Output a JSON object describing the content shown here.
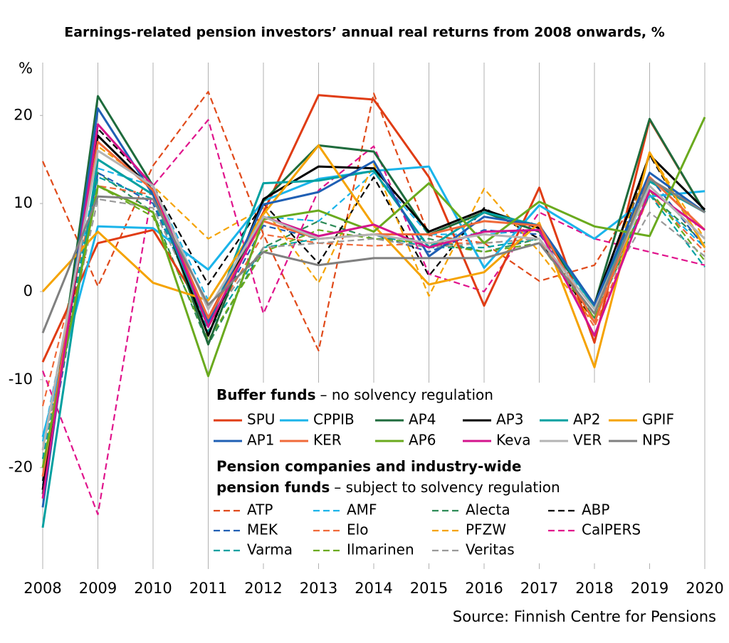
{
  "chart_data": {
    "type": "line",
    "title": "Earnings-related pension investors’ annual real returns from 2008 onwards, %",
    "y_label": "%",
    "source": "Source: Finnish Centre for Pensions",
    "categories": [
      "2008",
      "2009",
      "2010",
      "2011",
      "2012",
      "2013",
      "2014",
      "2015",
      "2016",
      "2017",
      "2018",
      "2019",
      "2020"
    ],
    "ylim": [
      -31.5,
      26
    ],
    "yticks": [
      -20,
      -10,
      0,
      10,
      20
    ],
    "grid": "x",
    "legend_groups": [
      {
        "title": [
          "Buffer funds"
        ],
        "subtitle": "– no solvency regulation"
      },
      {
        "title": [
          "Pension companies and industry-wide",
          "pension funds"
        ],
        "subtitle": "– subject to solvency regulation"
      }
    ],
    "series": [
      {
        "name": "SPU",
        "color": "#e03c14",
        "dashed": false,
        "values": [
          -8,
          5.5,
          7,
          -3,
          9,
          22.3,
          21.8,
          13,
          -1.6,
          11.8,
          -5.8,
          19.5,
          9
        ]
      },
      {
        "name": "CPPIB",
        "color": "#1ab4ea",
        "dashed": false,
        "values": [
          -16.5,
          7.4,
          7.2,
          2.5,
          10.3,
          12.8,
          13.7,
          14.2,
          2.7,
          9.8,
          6,
          10.8,
          11.4
        ]
      },
      {
        "name": "AP4",
        "color": "#1e6b3c",
        "dashed": false,
        "values": [
          -23,
          22.2,
          12,
          -6,
          10.3,
          16.6,
          15.9,
          6.5,
          9,
          6.8,
          -1.5,
          19.6,
          9
        ]
      },
      {
        "name": "AP3",
        "color": "#000000",
        "dashed": false,
        "values": [
          -22.5,
          17.7,
          11.5,
          -5,
          10.5,
          14.2,
          14,
          6.8,
          9.3,
          7.2,
          -1.5,
          15.5,
          9.3
        ]
      },
      {
        "name": "AP2",
        "color": "#00a0a0",
        "dashed": false,
        "values": [
          -26.8,
          15,
          11,
          -4,
          12.3,
          12.6,
          13.7,
          5,
          9,
          7.5,
          -1.8,
          12.5,
          9
        ]
      },
      {
        "name": "GPIF",
        "color": "#f5a300",
        "dashed": false,
        "values": [
          0,
          6.8,
          1,
          -1,
          8.8,
          16.6,
          7.5,
          0.8,
          2.2,
          7.8,
          -8.6,
          15.8,
          5
        ]
      },
      {
        "name": "AP1",
        "color": "#1f5fb4",
        "dashed": false,
        "values": [
          -24.5,
          20.8,
          11,
          -3.5,
          9.9,
          11.3,
          14.8,
          4,
          8.5,
          7.5,
          -1.5,
          13.5,
          9
        ]
      },
      {
        "name": "KER",
        "color": "#f06a3a",
        "dashed": false,
        "values": [
          -21,
          17,
          11.5,
          -3,
          8,
          6,
          6.5,
          6.5,
          8,
          7.5,
          -3.5,
          13,
          7
        ]
      },
      {
        "name": "AP6",
        "color": "#6aaa1e",
        "dashed": false,
        "values": [
          -20,
          12,
          9,
          -9.6,
          8.2,
          9.2,
          6.8,
          12.3,
          5.5,
          10.2,
          7.4,
          6.3,
          19.8
        ]
      },
      {
        "name": "Keva",
        "color": "#d4148c",
        "dashed": false,
        "values": [
          -23.5,
          19,
          12,
          -4,
          8.5,
          6.3,
          7.6,
          5,
          6.8,
          7,
          -5,
          11.5,
          7
        ]
      },
      {
        "name": "VER",
        "color": "#b4b4b4",
        "dashed": false,
        "values": [
          -18,
          16,
          12,
          -2,
          8.5,
          6,
          6.5,
          5.5,
          6.5,
          6,
          -2,
          12,
          6
        ]
      },
      {
        "name": "NPS",
        "color": "#808080",
        "dashed": false,
        "values": [
          -4.7,
          10.8,
          10.5,
          -1.5,
          4.5,
          3,
          3.8,
          3.8,
          3.8,
          5.5,
          -2.5,
          12.8,
          9
        ]
      },
      {
        "name": "ATP",
        "color": "#e04a1a",
        "dashed": true,
        "values": [
          14.8,
          0.6,
          14.3,
          22.7,
          6.5,
          -6.7,
          22.5,
          6.4,
          5.5,
          1.2,
          3,
          13,
          5
        ]
      },
      {
        "name": "AMF",
        "color": "#1ab4ea",
        "dashed": true,
        "values": [
          -17,
          14,
          12,
          -1,
          8.5,
          8,
          13.5,
          6.5,
          6.5,
          7,
          -2,
          11,
          5
        ]
      },
      {
        "name": "Alecta",
        "color": "#2e8b57",
        "dashed": true,
        "values": [
          -19,
          13.5,
          9,
          -6,
          5,
          8,
          6,
          6,
          4.5,
          6,
          -3,
          11,
          5.5
        ]
      },
      {
        "name": "ABP",
        "color": "#000000",
        "dashed": true,
        "values": [
          -21.5,
          18.5,
          12,
          0.8,
          10,
          3.2,
          13,
          1.8,
          9.5,
          6,
          -3.5,
          15.5,
          5
        ]
      },
      {
        "name": "MEK",
        "color": "#1f5fb4",
        "dashed": true,
        "values": [
          -22,
          13.5,
          10,
          -4,
          7.5,
          6,
          6.5,
          4.5,
          7,
          6.5,
          -1.5,
          13,
          5
        ]
      },
      {
        "name": "Elo",
        "color": "#f06a3a",
        "dashed": true,
        "values": [
          -13,
          12,
          11,
          -4,
          6.5,
          5.5,
          5.2,
          5.5,
          5.5,
          6,
          -4,
          11,
          4.5
        ]
      },
      {
        "name": "PFZW",
        "color": "#f5a300",
        "dashed": true,
        "values": [
          -20,
          16.5,
          12,
          6,
          9.5,
          1,
          14.5,
          -0.5,
          11.7,
          4.5,
          -3.5,
          15.8,
          6
        ]
      },
      {
        "name": "CalPERS",
        "color": "#e0148c",
        "dashed": true,
        "values": [
          -9,
          -25.3,
          12,
          19.5,
          -2.5,
          11.5,
          16.5,
          2,
          0,
          9,
          6,
          4.5,
          3
        ]
      },
      {
        "name": "Varma",
        "color": "#00a0a0",
        "dashed": true,
        "values": [
          -19,
          13,
          10.5,
          -4.5,
          5,
          6,
          6.5,
          5,
          5,
          6,
          -2,
          11,
          2.8
        ]
      },
      {
        "name": "Ilmarinen",
        "color": "#6aaa1e",
        "dashed": true,
        "values": [
          -20,
          12,
          8.5,
          -5.5,
          4.5,
          7,
          6,
          5.5,
          4.5,
          5.5,
          -3,
          11.5,
          3.5
        ]
      },
      {
        "name": "Veritas",
        "color": "#999999",
        "dashed": true,
        "values": [
          -18,
          10.5,
          9.5,
          -3.5,
          5,
          5.5,
          6,
          5,
          5.5,
          6,
          -2,
          9,
          4
        ]
      }
    ]
  }
}
